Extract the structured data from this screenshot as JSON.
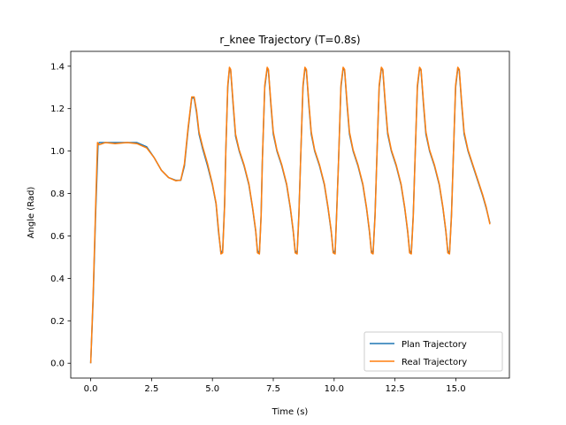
{
  "chart_data": {
    "type": "line",
    "title": "r_knee Trajectory (T=0.8s)",
    "xlabel": "Time (s)",
    "ylabel": "Angle (Rad)",
    "xlim": [
      -0.82,
      17.2
    ],
    "ylim": [
      -0.07,
      1.47
    ],
    "xticks": [
      0.0,
      2.5,
      5.0,
      7.5,
      10.0,
      12.5,
      15.0
    ],
    "xtick_labels": [
      "0.0",
      "2.5",
      "5.0",
      "7.5",
      "10.0",
      "12.5",
      "15.0"
    ],
    "yticks": [
      0.0,
      0.2,
      0.4,
      0.6,
      0.8,
      1.0,
      1.2,
      1.4
    ],
    "ytick_labels": [
      "0.0",
      "0.2",
      "0.4",
      "0.6",
      "0.8",
      "1.0",
      "1.2",
      "1.4"
    ],
    "grid": false,
    "legend_position": "lower right",
    "series": [
      {
        "name": "Plan Trajectory",
        "color": "#1f77b4",
        "points": [
          [
            0.0,
            0.0
          ],
          [
            0.1,
            0.3
          ],
          [
            0.2,
            0.7
          ],
          [
            0.3,
            1.03
          ],
          [
            0.35,
            1.04
          ],
          [
            0.6,
            1.04
          ],
          [
            1.0,
            1.04
          ],
          [
            1.5,
            1.04
          ],
          [
            1.9,
            1.04
          ],
          [
            2.3,
            1.02
          ],
          [
            2.6,
            0.97
          ],
          [
            2.9,
            0.91
          ],
          [
            3.2,
            0.875
          ],
          [
            3.5,
            0.862
          ],
          [
            3.7,
            0.862
          ],
          [
            3.85,
            0.93
          ],
          [
            4.0,
            1.1
          ],
          [
            4.15,
            1.25
          ],
          [
            4.25,
            1.25
          ],
          [
            4.35,
            1.18
          ],
          [
            4.45,
            1.08
          ],
          [
            4.6,
            1.01
          ],
          [
            4.8,
            0.93
          ],
          [
            5.0,
            0.84
          ],
          [
            5.15,
            0.75
          ],
          [
            5.25,
            0.62
          ],
          [
            5.35,
            0.52
          ],
          [
            5.42,
            0.53
          ],
          [
            5.5,
            0.75
          ],
          [
            5.55,
            1.0
          ],
          [
            5.63,
            1.3
          ],
          [
            5.7,
            1.39
          ],
          [
            5.75,
            1.38
          ],
          [
            5.85,
            1.22
          ],
          [
            5.95,
            1.07
          ],
          [
            6.1,
            1.0
          ],
          [
            6.3,
            0.93
          ],
          [
            6.5,
            0.84
          ],
          [
            6.65,
            0.73
          ],
          [
            6.78,
            0.62
          ],
          [
            6.85,
            0.53
          ],
          [
            6.93,
            0.52
          ],
          [
            7.0,
            0.7
          ],
          [
            7.05,
            0.95
          ],
          [
            7.15,
            1.3
          ],
          [
            7.25,
            1.39
          ],
          [
            7.3,
            1.38
          ],
          [
            7.4,
            1.22
          ],
          [
            7.5,
            1.08
          ],
          [
            7.65,
            1.0
          ],
          [
            7.85,
            0.93
          ],
          [
            8.05,
            0.84
          ],
          [
            8.2,
            0.73
          ],
          [
            8.32,
            0.62
          ],
          [
            8.4,
            0.53
          ],
          [
            8.48,
            0.52
          ],
          [
            8.55,
            0.7
          ],
          [
            8.62,
            0.95
          ],
          [
            8.72,
            1.3
          ],
          [
            8.8,
            1.39
          ],
          [
            8.86,
            1.38
          ],
          [
            8.96,
            1.22
          ],
          [
            9.06,
            1.08
          ],
          [
            9.2,
            1.0
          ],
          [
            9.4,
            0.93
          ],
          [
            9.6,
            0.84
          ],
          [
            9.75,
            0.73
          ],
          [
            9.88,
            0.62
          ],
          [
            9.96,
            0.53
          ],
          [
            10.04,
            0.52
          ],
          [
            10.1,
            0.7
          ],
          [
            10.18,
            0.95
          ],
          [
            10.28,
            1.3
          ],
          [
            10.37,
            1.39
          ],
          [
            10.43,
            1.38
          ],
          [
            10.53,
            1.22
          ],
          [
            10.63,
            1.08
          ],
          [
            10.78,
            1.0
          ],
          [
            10.98,
            0.93
          ],
          [
            11.18,
            0.84
          ],
          [
            11.33,
            0.73
          ],
          [
            11.45,
            0.62
          ],
          [
            11.53,
            0.53
          ],
          [
            11.6,
            0.52
          ],
          [
            11.68,
            0.7
          ],
          [
            11.75,
            0.95
          ],
          [
            11.85,
            1.3
          ],
          [
            11.94,
            1.39
          ],
          [
            12.0,
            1.38
          ],
          [
            12.1,
            1.22
          ],
          [
            12.2,
            1.08
          ],
          [
            12.35,
            1.0
          ],
          [
            12.55,
            0.93
          ],
          [
            12.75,
            0.84
          ],
          [
            12.9,
            0.73
          ],
          [
            13.02,
            0.62
          ],
          [
            13.1,
            0.53
          ],
          [
            13.17,
            0.52
          ],
          [
            13.25,
            0.7
          ],
          [
            13.32,
            0.95
          ],
          [
            13.42,
            1.3
          ],
          [
            13.51,
            1.39
          ],
          [
            13.57,
            1.38
          ],
          [
            13.67,
            1.22
          ],
          [
            13.77,
            1.08
          ],
          [
            13.92,
            1.0
          ],
          [
            14.12,
            0.93
          ],
          [
            14.32,
            0.84
          ],
          [
            14.47,
            0.73
          ],
          [
            14.59,
            0.62
          ],
          [
            14.67,
            0.53
          ],
          [
            14.74,
            0.52
          ],
          [
            14.82,
            0.7
          ],
          [
            14.89,
            0.95
          ],
          [
            14.99,
            1.3
          ],
          [
            15.08,
            1.39
          ],
          [
            15.14,
            1.38
          ],
          [
            15.24,
            1.22
          ],
          [
            15.34,
            1.08
          ],
          [
            15.5,
            1.0
          ],
          [
            15.7,
            0.93
          ],
          [
            15.9,
            0.86
          ],
          [
            16.1,
            0.79
          ],
          [
            16.25,
            0.73
          ],
          [
            16.4,
            0.66
          ]
        ]
      },
      {
        "name": "Real Trajectory",
        "color": "#ff7f0e",
        "points": [
          [
            0.0,
            0.0
          ],
          [
            0.1,
            0.32
          ],
          [
            0.2,
            0.73
          ],
          [
            0.28,
            1.04
          ],
          [
            0.35,
            1.03
          ],
          [
            0.6,
            1.04
          ],
          [
            1.0,
            1.035
          ],
          [
            1.5,
            1.04
          ],
          [
            1.9,
            1.035
          ],
          [
            2.3,
            1.015
          ],
          [
            2.6,
            0.97
          ],
          [
            2.9,
            0.91
          ],
          [
            3.2,
            0.875
          ],
          [
            3.5,
            0.86
          ],
          [
            3.7,
            0.863
          ],
          [
            3.85,
            0.94
          ],
          [
            4.0,
            1.11
          ],
          [
            4.15,
            1.255
          ],
          [
            4.25,
            1.255
          ],
          [
            4.35,
            1.19
          ],
          [
            4.45,
            1.09
          ],
          [
            4.6,
            1.02
          ],
          [
            4.8,
            0.94
          ],
          [
            5.0,
            0.845
          ],
          [
            5.15,
            0.755
          ],
          [
            5.25,
            0.63
          ],
          [
            5.35,
            0.515
          ],
          [
            5.42,
            0.52
          ],
          [
            5.5,
            0.74
          ],
          [
            5.55,
            1.0
          ],
          [
            5.63,
            1.31
          ],
          [
            5.7,
            1.395
          ],
          [
            5.75,
            1.385
          ],
          [
            5.85,
            1.23
          ],
          [
            5.95,
            1.08
          ],
          [
            6.1,
            1.005
          ],
          [
            6.3,
            0.935
          ],
          [
            6.5,
            0.845
          ],
          [
            6.65,
            0.735
          ],
          [
            6.78,
            0.625
          ],
          [
            6.85,
            0.52
          ],
          [
            6.93,
            0.515
          ],
          [
            7.0,
            0.69
          ],
          [
            7.05,
            0.95
          ],
          [
            7.15,
            1.31
          ],
          [
            7.25,
            1.395
          ],
          [
            7.3,
            1.385
          ],
          [
            7.4,
            1.23
          ],
          [
            7.5,
            1.09
          ],
          [
            7.65,
            1.005
          ],
          [
            7.85,
            0.935
          ],
          [
            8.05,
            0.845
          ],
          [
            8.2,
            0.735
          ],
          [
            8.32,
            0.625
          ],
          [
            8.4,
            0.52
          ],
          [
            8.48,
            0.515
          ],
          [
            8.55,
            0.69
          ],
          [
            8.62,
            0.95
          ],
          [
            8.72,
            1.31
          ],
          [
            8.8,
            1.395
          ],
          [
            8.86,
            1.385
          ],
          [
            8.96,
            1.23
          ],
          [
            9.06,
            1.09
          ],
          [
            9.2,
            1.005
          ],
          [
            9.4,
            0.935
          ],
          [
            9.6,
            0.845
          ],
          [
            9.75,
            0.735
          ],
          [
            9.88,
            0.625
          ],
          [
            9.96,
            0.52
          ],
          [
            10.04,
            0.515
          ],
          [
            10.1,
            0.69
          ],
          [
            10.18,
            0.95
          ],
          [
            10.28,
            1.31
          ],
          [
            10.37,
            1.395
          ],
          [
            10.43,
            1.385
          ],
          [
            10.53,
            1.23
          ],
          [
            10.63,
            1.09
          ],
          [
            10.78,
            1.005
          ],
          [
            10.98,
            0.935
          ],
          [
            11.18,
            0.845
          ],
          [
            11.33,
            0.735
          ],
          [
            11.45,
            0.625
          ],
          [
            11.53,
            0.52
          ],
          [
            11.6,
            0.515
          ],
          [
            11.68,
            0.69
          ],
          [
            11.75,
            0.95
          ],
          [
            11.85,
            1.31
          ],
          [
            11.94,
            1.395
          ],
          [
            12.0,
            1.385
          ],
          [
            12.1,
            1.23
          ],
          [
            12.2,
            1.09
          ],
          [
            12.35,
            1.005
          ],
          [
            12.55,
            0.935
          ],
          [
            12.75,
            0.845
          ],
          [
            12.9,
            0.735
          ],
          [
            13.02,
            0.625
          ],
          [
            13.1,
            0.52
          ],
          [
            13.17,
            0.515
          ],
          [
            13.25,
            0.69
          ],
          [
            13.32,
            0.95
          ],
          [
            13.42,
            1.31
          ],
          [
            13.51,
            1.395
          ],
          [
            13.57,
            1.385
          ],
          [
            13.67,
            1.23
          ],
          [
            13.77,
            1.09
          ],
          [
            13.92,
            1.005
          ],
          [
            14.12,
            0.935
          ],
          [
            14.32,
            0.845
          ],
          [
            14.47,
            0.735
          ],
          [
            14.59,
            0.625
          ],
          [
            14.67,
            0.52
          ],
          [
            14.74,
            0.515
          ],
          [
            14.82,
            0.69
          ],
          [
            14.89,
            0.95
          ],
          [
            14.99,
            1.31
          ],
          [
            15.08,
            1.395
          ],
          [
            15.14,
            1.385
          ],
          [
            15.24,
            1.23
          ],
          [
            15.34,
            1.09
          ],
          [
            15.5,
            1.005
          ],
          [
            15.7,
            0.935
          ],
          [
            15.9,
            0.865
          ],
          [
            16.1,
            0.795
          ],
          [
            16.25,
            0.735
          ],
          [
            16.4,
            0.655
          ]
        ]
      }
    ]
  }
}
